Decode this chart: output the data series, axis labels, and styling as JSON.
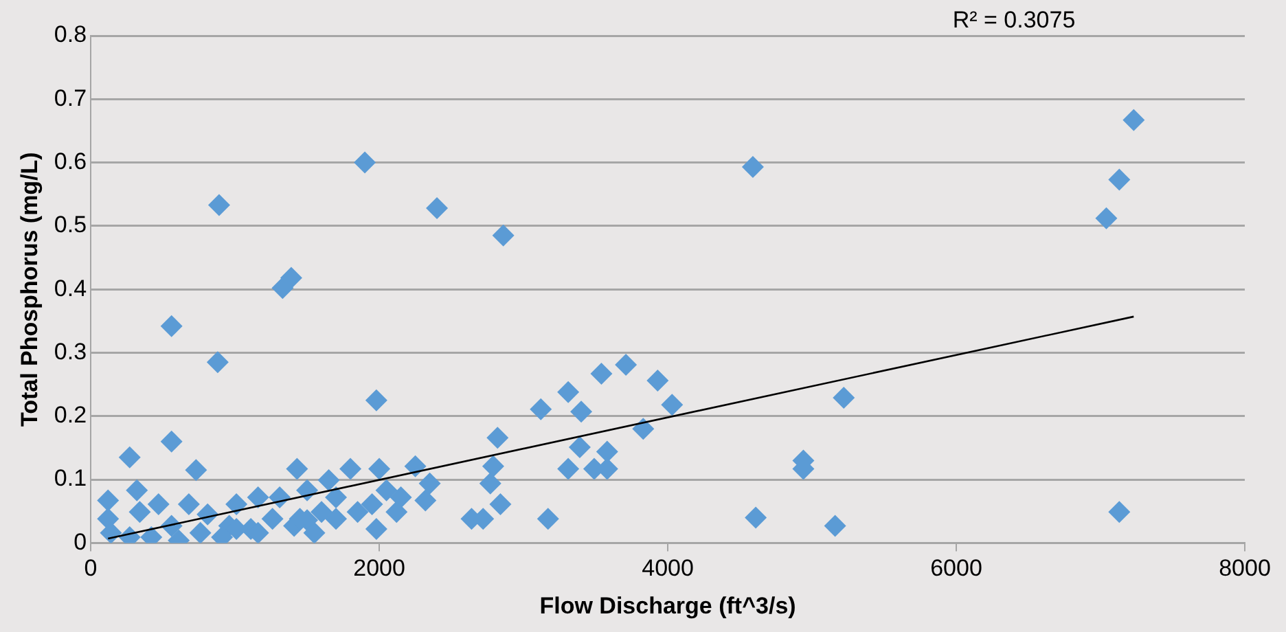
{
  "chart_data": {
    "type": "scatter",
    "xlabel": "Flow Discharge (ft^3/s)",
    "ylabel": "Total Phosphorus (mg/L)",
    "annotations": [
      "R² = 0.3075"
    ],
    "xlim": [
      0,
      8000
    ],
    "xticks": [
      0,
      2000,
      4000,
      6000,
      8000
    ],
    "ylim": [
      0,
      0.8
    ],
    "yticks": [
      0,
      0.1,
      0.2,
      0.3,
      0.4,
      0.5,
      0.6,
      0.7,
      0.8
    ],
    "grid": "y",
    "legend": false,
    "marker": "diamond",
    "series": [
      {
        "color": "#5b9bd5",
        "x": [
          120,
          120,
          140,
          270,
          320,
          340,
          420,
          560,
          560,
          560,
          880,
          890,
          730,
          680,
          810,
          960,
          1110,
          1260,
          1310,
          1330,
          1390,
          1430,
          1500,
          1600,
          1650,
          1800,
          1900,
          1980,
          2000,
          1950,
          1980,
          2050,
          2150,
          2250,
          2350,
          2320,
          2400,
          2640,
          2820,
          2720,
          2770,
          2790,
          2840,
          2860,
          3120,
          3170,
          3310,
          3310,
          3400,
          3390,
          3490,
          3540,
          3580,
          3580,
          3710,
          3830,
          3930,
          4030,
          4590,
          4610,
          4940,
          4940,
          5160,
          5220,
          7040,
          7130,
          7230,
          7130,
          270,
          610,
          760,
          910,
          1010,
          1160,
          1410,
          1500,
          1550,
          1700,
          1850,
          2120,
          1010,
          1160,
          1700,
          1450,
          470
        ],
        "values": [
          0.067,
          0.038,
          0.016,
          0.135,
          0.083,
          0.049,
          0.009,
          0.027,
          0.16,
          0.342,
          0.285,
          0.533,
          0.115,
          0.061,
          0.045,
          0.027,
          0.022,
          0.038,
          0.072,
          0.402,
          0.418,
          0.117,
          0.083,
          0.049,
          0.099,
          0.117,
          0.6,
          0.225,
          0.117,
          0.061,
          0.022,
          0.083,
          0.072,
          0.121,
          0.094,
          0.067,
          0.528,
          0.038,
          0.166,
          0.038,
          0.094,
          0.121,
          0.061,
          0.485,
          0.211,
          0.038,
          0.238,
          0.117,
          0.207,
          0.151,
          0.117,
          0.267,
          0.144,
          0.117,
          0.281,
          0.18,
          0.256,
          0.218,
          0.593,
          0.04,
          0.13,
          0.117,
          0.027,
          0.229,
          0.512,
          0.573,
          0.667,
          0.049,
          0.009,
          0.004,
          0.016,
          0.009,
          0.022,
          0.016,
          0.027,
          0.036,
          0.016,
          0.038,
          0.049,
          0.049,
          0.061,
          0.072,
          0.072,
          0.038,
          0.061
        ]
      },
      {
        "type": "line",
        "color": "#000000",
        "marker": "none",
        "x": [
          120,
          7230
        ],
        "values": [
          0.007,
          0.357
        ]
      }
    ]
  }
}
